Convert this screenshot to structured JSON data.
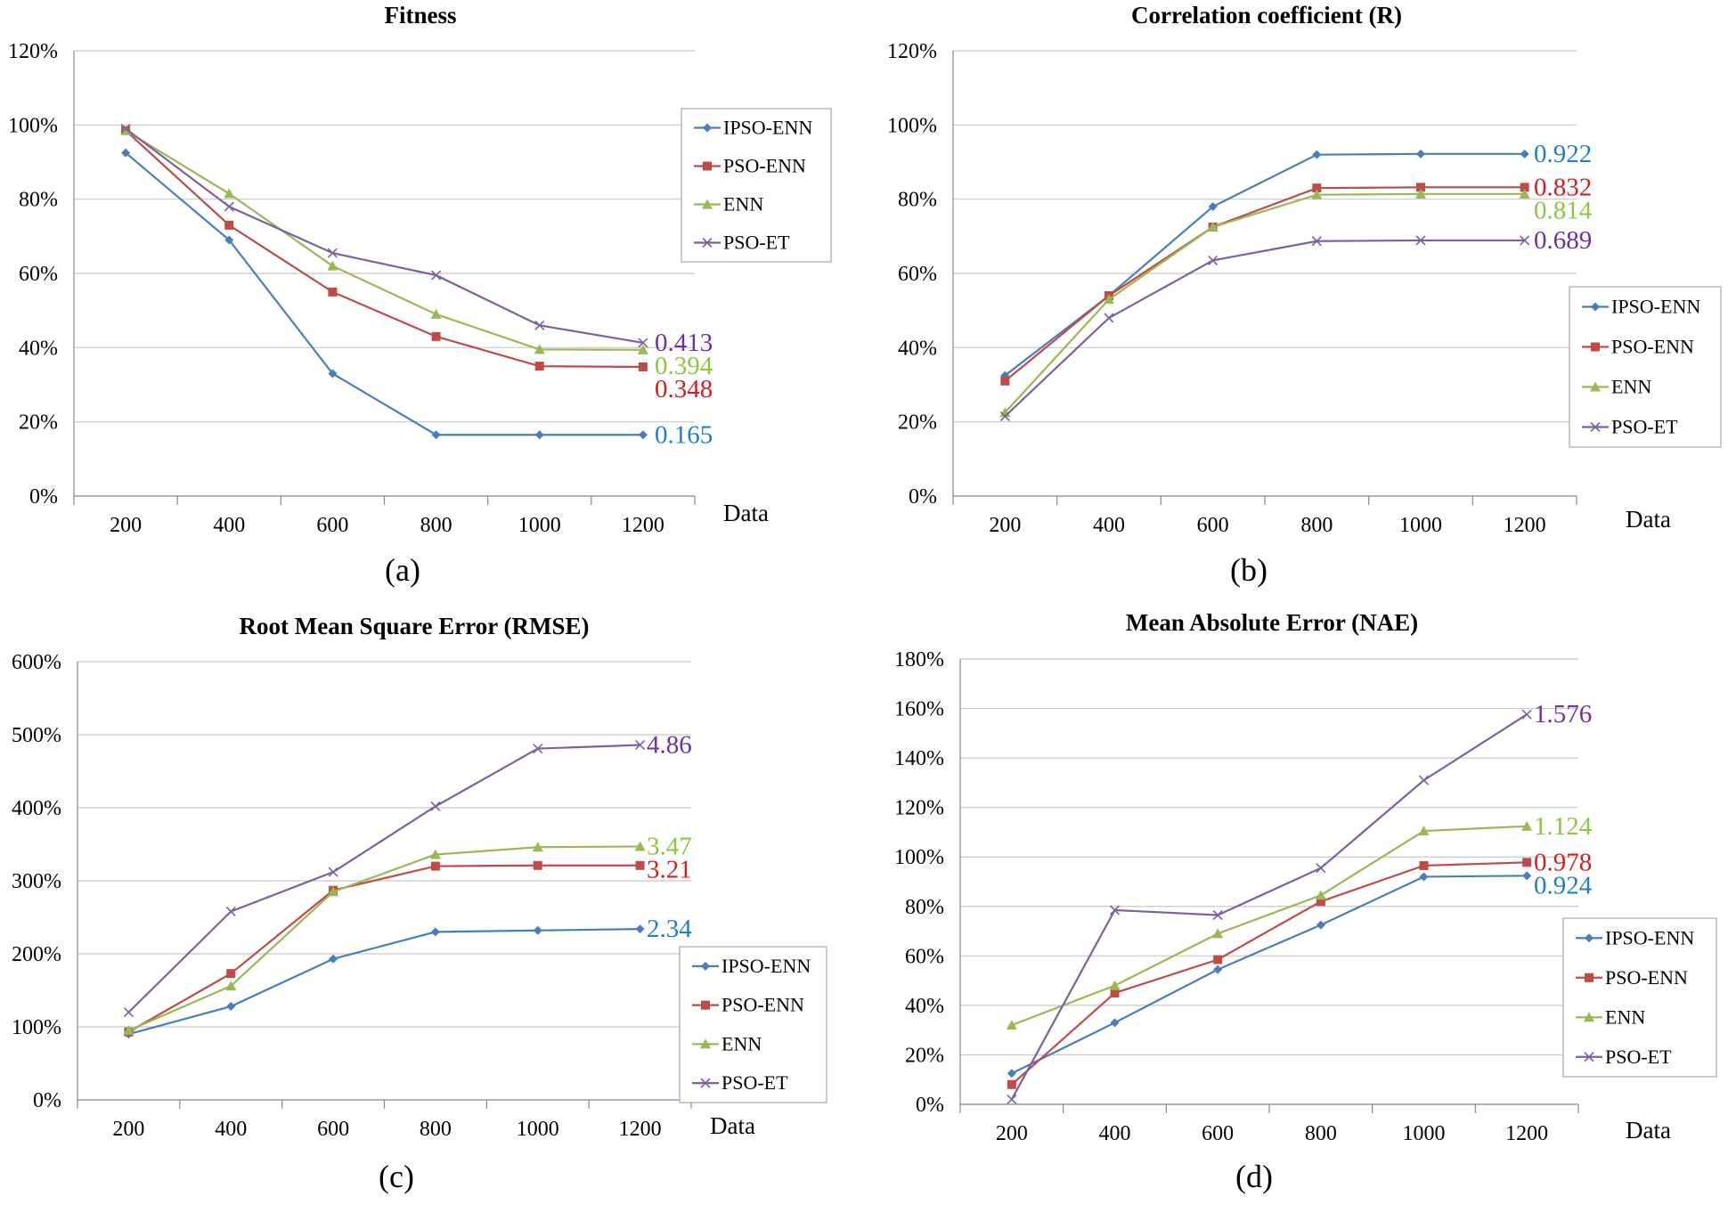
{
  "colors": {
    "IPSO-ENN": "#4a7ebb",
    "PSO-ENN": "#be4b48",
    "ENN": "#98b954",
    "PSO-ET": "#7d60a0",
    "end_label_IPSO-ENN": "#1f7fc4",
    "end_label_PSO-ENN": "#d01f1f",
    "end_label_ENN": "#8dc63f",
    "end_label_PSO-ET": "#7030a0",
    "grid": "#c8c8c8",
    "axis": "#888888"
  },
  "chart_data": [
    {
      "type": "line",
      "id": "a",
      "title": "Fitness",
      "caption": "(a)",
      "xlabel": "Data",
      "categories": [
        "200",
        "400",
        "600",
        "800",
        "1000",
        "1200"
      ],
      "yticks": [
        "0%",
        "20%",
        "40%",
        "60%",
        "80%",
        "100%",
        "120%"
      ],
      "ylim": [
        0,
        120
      ],
      "legend_position": "top-right",
      "series": [
        {
          "name": "IPSO-ENN",
          "marker": "diamond",
          "values": [
            92.5,
            69,
            33,
            16.5,
            16.5,
            16.5
          ],
          "end_label": "0.165"
        },
        {
          "name": "PSO-ENN",
          "marker": "square",
          "values": [
            98.5,
            73,
            55,
            43,
            35,
            34.8
          ],
          "end_label": "0.348"
        },
        {
          "name": "ENN",
          "marker": "triangle",
          "values": [
            98.5,
            81.5,
            62,
            49,
            39.5,
            39.4
          ],
          "end_label": "0.394"
        },
        {
          "name": "PSO-ET",
          "marker": "x",
          "values": [
            99,
            78,
            65.5,
            59.5,
            46,
            41.3
          ],
          "end_label": "0.413"
        }
      ]
    },
    {
      "type": "line",
      "id": "b",
      "title": "Correlation coefficient (R)",
      "caption": "(b)",
      "xlabel": "Data",
      "categories": [
        "200",
        "400",
        "600",
        "800",
        "1000",
        "1200"
      ],
      "yticks": [
        "0%",
        "20%",
        "40%",
        "60%",
        "80%",
        "100%",
        "120%"
      ],
      "ylim": [
        0,
        120
      ],
      "legend_position": "right",
      "series": [
        {
          "name": "IPSO-ENN",
          "marker": "diamond",
          "values": [
            32.5,
            54,
            78,
            92,
            92.2,
            92.2
          ],
          "end_label": "0.922"
        },
        {
          "name": "PSO-ENN",
          "marker": "square",
          "values": [
            31,
            54,
            72.5,
            83,
            83.2,
            83.2
          ],
          "end_label": "0.832"
        },
        {
          "name": "ENN",
          "marker": "triangle",
          "values": [
            22.5,
            53,
            72.5,
            81.2,
            81.4,
            81.4
          ],
          "end_label": "0.814"
        },
        {
          "name": "PSO-ET",
          "marker": "x",
          "values": [
            21.5,
            48,
            63.5,
            68.7,
            68.9,
            68.9
          ],
          "end_label": "0.689"
        }
      ]
    },
    {
      "type": "line",
      "id": "c",
      "title": "Root Mean Square Error (RMSE)",
      "caption": "(c)",
      "xlabel": "Data",
      "categories": [
        "200",
        "400",
        "600",
        "800",
        "1000",
        "1200"
      ],
      "yticks": [
        "0%",
        "100%",
        "200%",
        "300%",
        "400%",
        "500%",
        "600%"
      ],
      "ylim": [
        0,
        600
      ],
      "legend_position": "bottom-right",
      "series": [
        {
          "name": "IPSO-ENN",
          "marker": "diamond",
          "values": [
            90,
            128,
            193,
            230,
            232,
            234
          ],
          "end_label": "2.34"
        },
        {
          "name": "PSO-ENN",
          "marker": "square",
          "values": [
            93,
            173,
            287,
            320,
            321,
            321
          ],
          "end_label": "3.21"
        },
        {
          "name": "ENN",
          "marker": "triangle",
          "values": [
            95,
            156,
            285,
            336,
            346,
            347
          ],
          "end_label": "3.47"
        },
        {
          "name": "PSO-ET",
          "marker": "x",
          "values": [
            120,
            258,
            312,
            402,
            481,
            486
          ],
          "end_label": "4.86"
        }
      ]
    },
    {
      "type": "line",
      "id": "d",
      "title": "Mean Absolute Error (NAE)",
      "caption": "(d)",
      "xlabel": "Data",
      "categories": [
        "200",
        "400",
        "600",
        "800",
        "1000",
        "1200"
      ],
      "yticks": [
        "0%",
        "20%",
        "40%",
        "60%",
        "80%",
        "100%",
        "120%",
        "140%",
        "160%",
        "180%"
      ],
      "ylim": [
        0,
        180
      ],
      "legend_position": "bottom-right",
      "series": [
        {
          "name": "IPSO-ENN",
          "marker": "diamond",
          "values": [
            12.5,
            33,
            54.5,
            72.5,
            92,
            92.4
          ],
          "end_label": "0.924"
        },
        {
          "name": "PSO-ENN",
          "marker": "square",
          "values": [
            8,
            45,
            58.5,
            82,
            96.5,
            97.8
          ],
          "end_label": "0.978"
        },
        {
          "name": "ENN",
          "marker": "triangle",
          "values": [
            32,
            48,
            69,
            84.5,
            110.5,
            112.4
          ],
          "end_label": "1.124"
        },
        {
          "name": "PSO-ET",
          "marker": "x",
          "values": [
            2,
            78.5,
            76.5,
            95.5,
            131,
            157.6
          ],
          "end_label": "1.576"
        }
      ]
    }
  ]
}
